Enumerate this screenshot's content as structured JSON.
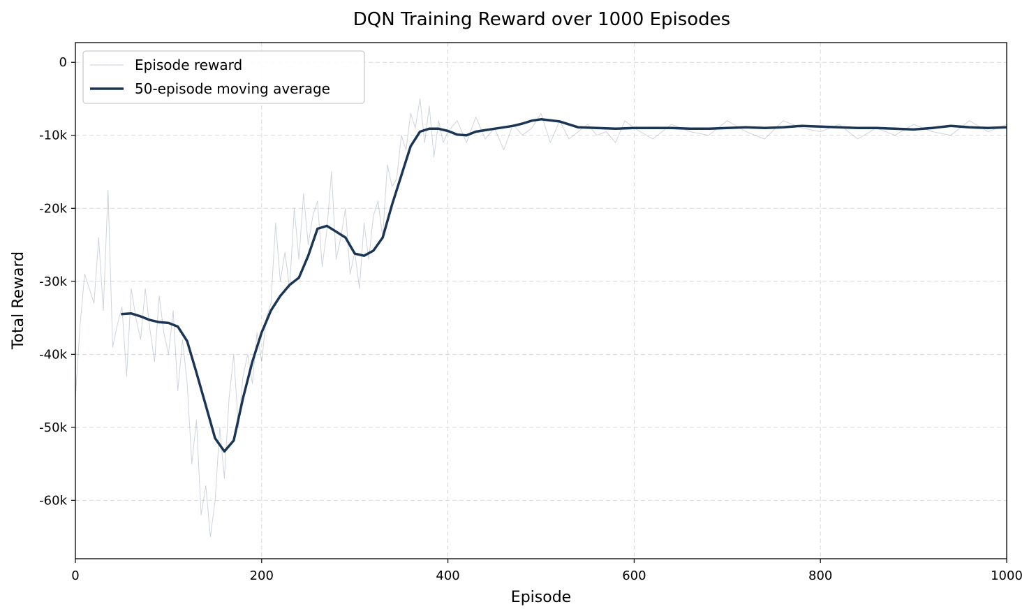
{
  "chart_data": {
    "type": "line",
    "title": "DQN Training Reward over 1000 Episodes",
    "xlabel": "Episode",
    "ylabel": "Total Reward",
    "xlim": [
      0,
      1000
    ],
    "ylim": [
      -68000,
      2700
    ],
    "x_ticks": [
      0,
      200,
      400,
      600,
      800,
      1000
    ],
    "x_tick_labels": [
      "0",
      "200",
      "400",
      "600",
      "800",
      "1000"
    ],
    "y_ticks": [
      0,
      -10000,
      -20000,
      -30000,
      -40000,
      -50000,
      -60000
    ],
    "y_tick_labels": [
      "0",
      "-10k",
      "-20k",
      "-30k",
      "-40k",
      "-50k",
      "-60k"
    ],
    "grid": true,
    "legend_position": "top-left",
    "series": [
      {
        "name": "Episode reward",
        "color": "#1f3a5f",
        "opacity": 0.22,
        "style": "thin",
        "x": [
          0,
          5,
          10,
          15,
          20,
          25,
          30,
          35,
          40,
          45,
          50,
          55,
          60,
          65,
          70,
          75,
          80,
          85,
          90,
          95,
          100,
          105,
          110,
          115,
          120,
          125,
          130,
          135,
          140,
          145,
          150,
          155,
          160,
          165,
          170,
          175,
          180,
          185,
          190,
          195,
          200,
          205,
          210,
          215,
          220,
          225,
          230,
          235,
          240,
          245,
          250,
          255,
          260,
          265,
          270,
          275,
          280,
          285,
          290,
          295,
          300,
          305,
          310,
          315,
          320,
          325,
          330,
          335,
          340,
          345,
          350,
          355,
          360,
          365,
          370,
          375,
          380,
          385,
          390,
          395,
          400,
          410,
          420,
          430,
          440,
          450,
          460,
          470,
          480,
          490,
          500,
          510,
          520,
          530,
          540,
          550,
          560,
          570,
          580,
          590,
          600,
          620,
          640,
          660,
          680,
          700,
          720,
          740,
          760,
          780,
          800,
          820,
          840,
          860,
          880,
          900,
          920,
          940,
          960,
          980,
          1000
        ],
        "y": [
          -46000,
          -36000,
          -29000,
          -31000,
          -33000,
          -24000,
          -34000,
          -17500,
          -39000,
          -36000,
          -33500,
          -43000,
          -31000,
          -35000,
          -38000,
          -31000,
          -36500,
          -41000,
          -32000,
          -37000,
          -40000,
          -34000,
          -45000,
          -38000,
          -44000,
          -55000,
          -49000,
          -62000,
          -58000,
          -65000,
          -60000,
          -50000,
          -57000,
          -46000,
          -40000,
          -50000,
          -43000,
          -40000,
          -44000,
          -37000,
          -41000,
          -35000,
          -33000,
          -22000,
          -30000,
          -26000,
          -31000,
          -20000,
          -27000,
          -18000,
          -25000,
          -21000,
          -19000,
          -28000,
          -23000,
          -15000,
          -27000,
          -24000,
          -20000,
          -29000,
          -26000,
          -31000,
          -22000,
          -27000,
          -21000,
          -19000,
          -24000,
          -14000,
          -17000,
          -16000,
          -10000,
          -12000,
          -7000,
          -9000,
          -5000,
          -11000,
          -6000,
          -13000,
          -8000,
          -11000,
          -9500,
          -8000,
          -11000,
          -7500,
          -10500,
          -9000,
          -12000,
          -8500,
          -10000,
          -9000,
          -7000,
          -11000,
          -8000,
          -10500,
          -9500,
          -8500,
          -10000,
          -9500,
          -11000,
          -8000,
          -9000,
          -10500,
          -8500,
          -9500,
          -10000,
          -8000,
          -9500,
          -10500,
          -8000,
          -9000,
          -9500,
          -8500,
          -10500,
          -9000,
          -10000,
          -8500,
          -9500,
          -10000,
          -8000,
          -9500,
          -8500
        ]
      },
      {
        "name": "50-episode moving average",
        "color": "#1b3555",
        "opacity": 1,
        "style": "thick",
        "x": [
          49,
          60,
          70,
          80,
          90,
          100,
          110,
          120,
          130,
          140,
          150,
          160,
          170,
          180,
          190,
          200,
          210,
          220,
          230,
          240,
          250,
          260,
          270,
          280,
          290,
          300,
          310,
          320,
          330,
          340,
          350,
          360,
          370,
          380,
          390,
          400,
          410,
          420,
          430,
          440,
          450,
          460,
          470,
          480,
          490,
          500,
          520,
          540,
          560,
          580,
          600,
          620,
          640,
          660,
          680,
          700,
          720,
          740,
          760,
          780,
          800,
          820,
          840,
          860,
          880,
          900,
          920,
          940,
          960,
          980,
          1000
        ],
        "y": [
          -34500,
          -34400,
          -34800,
          -35300,
          -35600,
          -35700,
          -36200,
          -38200,
          -42500,
          -47000,
          -51500,
          -53300,
          -51800,
          -46000,
          -41000,
          -37000,
          -34000,
          -32000,
          -30500,
          -29500,
          -26500,
          -22800,
          -22400,
          -23200,
          -24000,
          -26200,
          -26500,
          -25800,
          -24000,
          -19500,
          -15500,
          -11500,
          -9500,
          -9100,
          -9100,
          -9400,
          -9900,
          -10000,
          -9500,
          -9300,
          -9100,
          -8900,
          -8700,
          -8400,
          -8000,
          -7800,
          -8100,
          -8900,
          -9000,
          -9100,
          -9000,
          -9000,
          -9000,
          -9100,
          -9100,
          -9000,
          -8900,
          -9000,
          -8900,
          -8700,
          -8800,
          -8900,
          -9000,
          -9000,
          -9100,
          -9200,
          -9000,
          -8700,
          -8900,
          -9000,
          -8900
        ]
      }
    ]
  }
}
